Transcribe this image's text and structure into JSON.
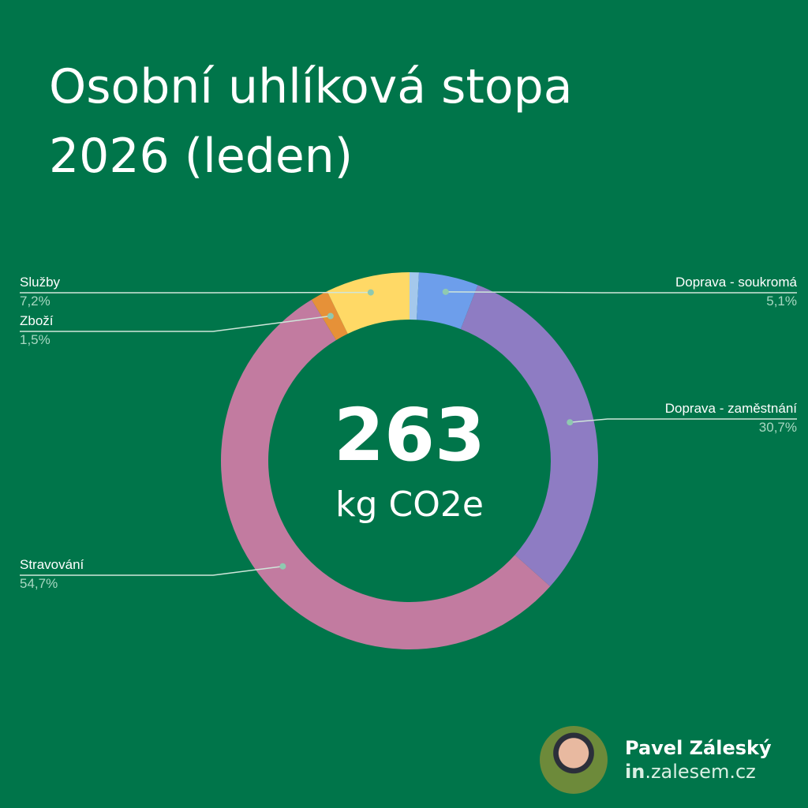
{
  "chart_data": {
    "type": "pie",
    "donut": true,
    "title": "Osobní uhlíková stopa 2026 (leden)",
    "title_lines": [
      "Osobní uhlíková stopa",
      "2026 (leden)"
    ],
    "center_value": "263",
    "center_unit": "kg CO2e",
    "slices": [
      {
        "name": "",
        "value": 0.8,
        "color": "#a4c8ec",
        "pct_label": ""
      },
      {
        "name": "Doprava - soukromá",
        "value": 5.1,
        "color": "#6d9eeb",
        "pct_label": "5,1%"
      },
      {
        "name": "Doprava - zaměstnání",
        "value": 30.7,
        "color": "#8e7cc3",
        "pct_label": "30,7%"
      },
      {
        "name": "Stravování",
        "value": 54.7,
        "color": "#c27ba0",
        "pct_label": "54,7%"
      },
      {
        "name": "Zboží",
        "value": 1.5,
        "color": "#e69138",
        "pct_label": "1,5%"
      },
      {
        "name": "Služby",
        "value": 7.2,
        "color": "#ffd966",
        "pct_label": "7,2%"
      }
    ],
    "background": "#00754a"
  },
  "author": {
    "name": "Pavel Záleský",
    "site_bold": "in",
    "site_rest": ".zalesem.cz"
  }
}
